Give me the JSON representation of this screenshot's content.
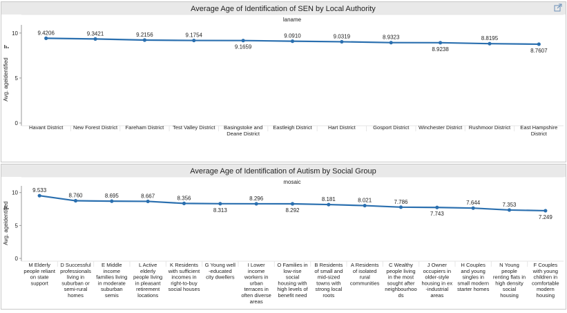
{
  "top_icon": "external-link-icon",
  "colors": {
    "line": "#2a6faf",
    "title_bar": "#e9e9e9",
    "panel_border": "#c8c8c8",
    "axis": "#9a9a9a",
    "grid": "#e6e6e6",
    "text": "#222222"
  },
  "chart_data": [
    {
      "type": "line",
      "title": "Average Age of Identification of SEN by Local Authority",
      "header": "laname",
      "ylabel": "Avg. ageidentified",
      "yticks": [
        0,
        5,
        10
      ],
      "ylim": [
        0,
        10.6
      ],
      "grid": false,
      "categories": [
        [
          "Havant District"
        ],
        [
          "New Forest District"
        ],
        [
          "Fareham District"
        ],
        [
          "Test Valley District"
        ],
        [
          "Basingstoke and",
          "Deane District"
        ],
        [
          "Eastleigh District"
        ],
        [
          "Hart District"
        ],
        [
          "Gosport District"
        ],
        [
          "Winchester District"
        ],
        [
          "Rushmoor District"
        ],
        [
          "East Hampshire",
          "District"
        ]
      ],
      "values": [
        9.4206,
        9.3421,
        9.2156,
        9.1754,
        9.1659,
        9.091,
        9.0319,
        8.9323,
        8.9238,
        8.8195,
        8.7607
      ],
      "data_labels": [
        "9.4206",
        "9.3421",
        "9.2156",
        "9.1754",
        "9.1659",
        "9.0910",
        "9.0319",
        "8.9323",
        "8.9238",
        "8.8195",
        "8.7607"
      ],
      "label_positions": [
        "above",
        "above",
        "above",
        "above",
        "below",
        "above",
        "above",
        "above",
        "below",
        "above",
        "below"
      ]
    },
    {
      "type": "line",
      "title": "Average Age of Identification of Autism by Social Group",
      "header": "mosaic",
      "ylabel": "Avg. ageidentified",
      "yticks": [
        0,
        5,
        10
      ],
      "ylim": [
        0,
        10.6
      ],
      "grid": false,
      "categories": [
        [
          "M Elderly",
          "people reliant",
          "on state",
          "support"
        ],
        [
          "D Successful",
          "professionals",
          "living in",
          "suburban or",
          "semi-rural",
          "homes"
        ],
        [
          "E Middle",
          "income",
          "families living",
          "in moderate",
          "suburban",
          "semis"
        ],
        [
          "L Active",
          "elderly",
          "people living",
          "in pleasant",
          "retirement",
          "locations"
        ],
        [
          "K Residents",
          "with sufficient",
          "incomes in",
          "right-to-buy",
          "social houses"
        ],
        [
          "G Young well",
          "-educated",
          "city dwellers"
        ],
        [
          "I Lower",
          "income",
          "workers in",
          "urban",
          "terraces in",
          "often diverse",
          "areas"
        ],
        [
          "O Families in",
          "low-rise",
          "social",
          "housing with",
          "high levels of",
          "benefit need"
        ],
        [
          "B Residents",
          "of small and",
          "mid-sized",
          "towns with",
          "strong local",
          "roots"
        ],
        [
          "A Residents",
          "of isolated",
          "rural",
          "communities"
        ],
        [
          "C Wealthy",
          "people living",
          "in the most",
          "sought after",
          "neighbourhoo",
          "ds"
        ],
        [
          "J Owner",
          "occupiers in",
          "older-style",
          "housing in ex",
          "-industrial",
          "areas"
        ],
        [
          "H Couples",
          "and young",
          "singles in",
          "small modern",
          "starter homes"
        ],
        [
          "N Young",
          "people",
          "renting flats in",
          "high density",
          "social",
          "housing"
        ],
        [
          "F Couples",
          "with young",
          "children in",
          "comfortable",
          "modern",
          "housing"
        ]
      ],
      "values": [
        9.533,
        8.76,
        8.695,
        8.667,
        8.356,
        8.313,
        8.296,
        8.292,
        8.181,
        8.021,
        7.786,
        7.743,
        7.644,
        7.353,
        7.249
      ],
      "data_labels": [
        "9.533",
        "8.760",
        "8.695",
        "8.667",
        "8.356",
        "8.313",
        "8.296",
        "8.292",
        "8.181",
        "8.021",
        "7.786",
        "7.743",
        "7.644",
        "7.353",
        "7.249"
      ],
      "label_positions": [
        "above",
        "above",
        "above",
        "above",
        "above",
        "below",
        "above",
        "below",
        "above",
        "above",
        "above",
        "below",
        "above",
        "above",
        "below"
      ]
    }
  ]
}
